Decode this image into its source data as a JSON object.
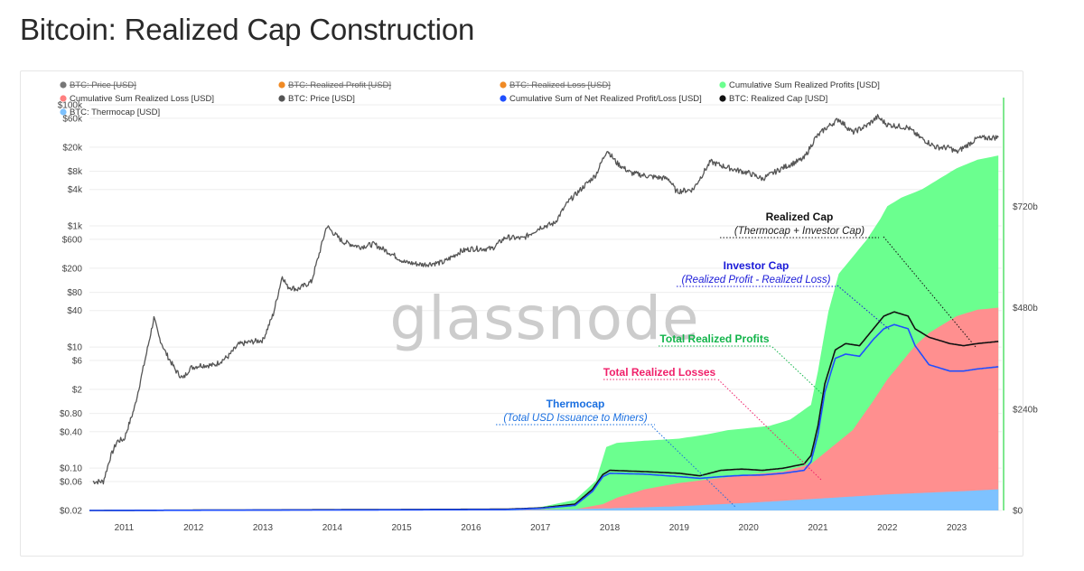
{
  "page_title": "Bitcoin: Realized Cap Construction",
  "watermark": "glassnode",
  "colors": {
    "price": "#555555",
    "realized_cap": "#111111",
    "profits": "#6bff8f",
    "losses": "#ff8f8f",
    "thermocap": "#7ec2ff",
    "investor_cap": "#1f4fff",
    "profit_text": "#12b44a",
    "loss_text": "#f0206a",
    "thermo_text": "#1a6fe0",
    "investor_text": "#1a1ad8",
    "accent_bar": "#7fe88f"
  },
  "chart_data": {
    "type": "area",
    "title": "Bitcoin: Realized Cap Construction",
    "x_range": [
      2010.5,
      2023.65
    ],
    "x_ticks": [
      "2011",
      "2012",
      "2013",
      "2014",
      "2015",
      "2016",
      "2017",
      "2018",
      "2019",
      "2020",
      "2021",
      "2022",
      "2023"
    ],
    "left_axis": {
      "scale": "log",
      "unit": "USD",
      "ticks": [
        {
          "label": "$0.02",
          "value": 0.02
        },
        {
          "label": "$0.06",
          "value": 0.06
        },
        {
          "label": "$0.10",
          "value": 0.1
        },
        {
          "label": "$0.40",
          "value": 0.4
        },
        {
          "label": "$0.80",
          "value": 0.8
        },
        {
          "label": "$2",
          "value": 2
        },
        {
          "label": "$6",
          "value": 6
        },
        {
          "label": "$10",
          "value": 10
        },
        {
          "label": "$40",
          "value": 40
        },
        {
          "label": "$80",
          "value": 80
        },
        {
          "label": "$200",
          "value": 200
        },
        {
          "label": "$600",
          "value": 600
        },
        {
          "label": "$1k",
          "value": 1000
        },
        {
          "label": "$4k",
          "value": 4000
        },
        {
          "label": "$8k",
          "value": 8000
        },
        {
          "label": "$20k",
          "value": 20000
        },
        {
          "label": "$60k",
          "value": 60000
        },
        {
          "label": "$100k",
          "value": 100000
        }
      ]
    },
    "right_axis": {
      "scale": "linear",
      "unit": "USD",
      "range": [
        0,
        960
      ],
      "ticks": [
        {
          "label": "$0",
          "value": 0
        },
        {
          "label": "$240b",
          "value": 240
        },
        {
          "label": "$480b",
          "value": 480
        },
        {
          "label": "$720b",
          "value": 720
        }
      ]
    },
    "legend": [
      {
        "name": "BTC: Price [USD]",
        "color": "#777777",
        "struck": true
      },
      {
        "name": "BTC: Realized Profit [USD]",
        "color": "#f08a24",
        "struck": true
      },
      {
        "name": "BTC: Realized Loss [USD]",
        "color": "#f08a24",
        "struck": true
      },
      {
        "name": "Cumulative Sum Realized Profits [USD]",
        "color": "#6bff8f",
        "struck": false
      },
      {
        "name": "Cumulative Sum Realized Loss [USD]",
        "color": "#ff7f7f",
        "struck": false
      },
      {
        "name": "BTC: Price [USD]",
        "color": "#555555",
        "struck": false
      },
      {
        "name": "Cumulative Sum of Net Realized Profit/Loss [USD]",
        "color": "#1f4fff",
        "struck": false
      },
      {
        "name": "BTC: Realized Cap [USD]",
        "color": "#111111",
        "struck": false
      },
      {
        "name": "BTC: Thermocap [USD]",
        "color": "#7ec2ff",
        "struck": false
      }
    ],
    "grid": true,
    "series": [
      {
        "name": "BTC: Price [USD]",
        "axis": "left",
        "kind": "line",
        "x": [
          2010.55,
          2010.62,
          2010.7,
          2010.8,
          2010.9,
          2011.0,
          2011.15,
          2011.3,
          2011.43,
          2011.5,
          2011.6,
          2011.75,
          2011.85,
          2011.95,
          2012.1,
          2012.3,
          2012.5,
          2012.65,
          2012.8,
          2013.0,
          2013.15,
          2013.28,
          2013.35,
          2013.5,
          2013.7,
          2013.85,
          2013.92,
          2014.0,
          2014.15,
          2014.4,
          2014.6,
          2014.85,
          2015.05,
          2015.3,
          2015.6,
          2015.85,
          2016.0,
          2016.3,
          2016.5,
          2016.75,
          2017.0,
          2017.2,
          2017.4,
          2017.6,
          2017.8,
          2017.96,
          2018.1,
          2018.3,
          2018.6,
          2018.85,
          2018.96,
          2019.2,
          2019.45,
          2019.6,
          2019.8,
          2020.0,
          2020.2,
          2020.5,
          2020.8,
          2020.96,
          2021.1,
          2021.3,
          2021.5,
          2021.7,
          2021.86,
          2022.0,
          2022.3,
          2022.45,
          2022.7,
          2022.9,
          2023.0,
          2023.3,
          2023.6
        ],
        "y": [
          0.06,
          0.06,
          0.06,
          0.15,
          0.28,
          0.3,
          1.0,
          6.0,
          30.0,
          15.0,
          8.0,
          4.0,
          3.0,
          4.5,
          5.0,
          5.0,
          7.0,
          11.0,
          12.0,
          13.0,
          35.0,
          150.0,
          100.0,
          90.0,
          120.0,
          500.0,
          1000.0,
          800.0,
          550.0,
          450.0,
          500.0,
          350.0,
          250.0,
          230.0,
          250.0,
          380.0,
          420.0,
          420.0,
          650.0,
          620.0,
          950.0,
          1100.0,
          2500.0,
          4200.0,
          7000.0,
          18000.0,
          11000.0,
          7500.0,
          6500.0,
          6000.0,
          3700.0,
          4000.0,
          11500.0,
          10000.0,
          8500.0,
          7500.0,
          6000.0,
          9200.0,
          13000.0,
          28000.0,
          40000.0,
          58000.0,
          35000.0,
          45000.0,
          63000.0,
          47000.0,
          42000.0,
          30000.0,
          20000.0,
          19500.0,
          16500.0,
          28000.0,
          29000.0
        ]
      },
      {
        "name": "Cumulative Sum Realized Profits [USD]",
        "axis": "right",
        "kind": "area",
        "x": [
          2010.5,
          2016.5,
          2017.0,
          2017.5,
          2017.8,
          2017.95,
          2018.1,
          2018.5,
          2019.0,
          2019.4,
          2019.7,
          2020.0,
          2020.3,
          2020.6,
          2020.9,
          2021.0,
          2021.15,
          2021.3,
          2021.5,
          2021.7,
          2021.9,
          2022.0,
          2022.2,
          2022.5,
          2022.8,
          2023.0,
          2023.3,
          2023.6
        ],
        "y": [
          0,
          2,
          8,
          25,
          70,
          150,
          160,
          165,
          170,
          180,
          190,
          195,
          200,
          215,
          250,
          330,
          470,
          560,
          600,
          640,
          690,
          720,
          740,
          760,
          790,
          810,
          830,
          840
        ]
      },
      {
        "name": "Cumulative Sum Realized Loss [USD]",
        "axis": "right",
        "kind": "area",
        "x": [
          2010.5,
          2017.5,
          2017.9,
          2018.1,
          2018.5,
          2019.0,
          2019.5,
          2020.0,
          2020.5,
          2020.9,
          2021.2,
          2021.5,
          2021.8,
          2022.0,
          2022.2,
          2022.4,
          2022.6,
          2022.8,
          2023.0,
          2023.3,
          2023.6
        ],
        "y": [
          0,
          3,
          15,
          30,
          50,
          65,
          75,
          85,
          92,
          110,
          150,
          190,
          260,
          310,
          350,
          390,
          420,
          440,
          460,
          475,
          480
        ]
      },
      {
        "name": "BTC: Thermocap [USD]",
        "axis": "right",
        "kind": "area",
        "x": [
          2010.5,
          2016.0,
          2017.0,
          2018.0,
          2019.0,
          2020.0,
          2021.0,
          2022.0,
          2023.0,
          2023.6
        ],
        "y": [
          0,
          0.5,
          1.5,
          5,
          10,
          18,
          28,
          38,
          45,
          50
        ]
      },
      {
        "name": "BTC: Realized Cap [USD]",
        "axis": "right",
        "kind": "line",
        "x": [
          2010.5,
          2016.5,
          2017.0,
          2017.5,
          2017.75,
          2017.9,
          2018.0,
          2018.5,
          2019.0,
          2019.3,
          2019.6,
          2019.9,
          2020.2,
          2020.5,
          2020.8,
          2020.9,
          2021.0,
          2021.1,
          2021.25,
          2021.4,
          2021.6,
          2021.8,
          2021.95,
          2022.1,
          2022.3,
          2022.4,
          2022.6,
          2022.9,
          2023.1,
          2023.3,
          2023.6
        ],
        "y": [
          0,
          3,
          6,
          15,
          50,
          85,
          95,
          92,
          88,
          82,
          95,
          98,
          95,
          100,
          110,
          130,
          200,
          300,
          380,
          395,
          390,
          430,
          460,
          470,
          460,
          430,
          410,
          395,
          390,
          395,
          400
        ]
      },
      {
        "name": "Cumulative Sum of Net Realized Profit/Loss [USD]",
        "axis": "right",
        "kind": "line",
        "x": [
          2010.5,
          2016.5,
          2017.0,
          2017.5,
          2017.75,
          2017.9,
          2018.0,
          2018.5,
          2019.0,
          2019.3,
          2019.6,
          2019.9,
          2020.2,
          2020.5,
          2020.8,
          2020.9,
          2021.0,
          2021.1,
          2021.25,
          2021.4,
          2021.6,
          2021.8,
          2021.95,
          2022.1,
          2022.3,
          2022.4,
          2022.6,
          2022.9,
          2023.1,
          2023.3,
          2023.6
        ],
        "y": [
          0,
          2,
          5,
          12,
          45,
          80,
          88,
          86,
          80,
          76,
          80,
          83,
          84,
          88,
          95,
          115,
          180,
          280,
          360,
          370,
          365,
          405,
          430,
          440,
          430,
          390,
          345,
          330,
          330,
          335,
          340
        ]
      }
    ],
    "annotations": [
      {
        "title": "Realized Cap",
        "subtitle": "(Thermocap + Investor Cap)",
        "title_color": "#111111",
        "sub_color": "#222222",
        "points_to": "BTC: Realized Cap [USD]"
      },
      {
        "title": "Investor Cap",
        "subtitle": "(Realized Profit - Realized Loss)",
        "title_color": "#1a1ad8",
        "sub_color": "#1a1ad8",
        "points_to": "Cumulative Sum of Net Realized Profit/Loss [USD]"
      },
      {
        "title": "Total Realized Profits",
        "subtitle": "",
        "title_color": "#12b44a",
        "sub_color": "#12b44a",
        "points_to": "Cumulative Sum Realized Profits [USD]"
      },
      {
        "title": "Total Realized Losses",
        "subtitle": "",
        "title_color": "#f0206a",
        "sub_color": "#f0206a",
        "points_to": "Cumulative Sum Realized Loss [USD]"
      },
      {
        "title": "Thermocap",
        "subtitle": "(Total USD Issuance to Miners)",
        "title_color": "#1a6fe0",
        "sub_color": "#1a6fe0",
        "points_to": "BTC: Thermocap [USD]"
      }
    ]
  }
}
